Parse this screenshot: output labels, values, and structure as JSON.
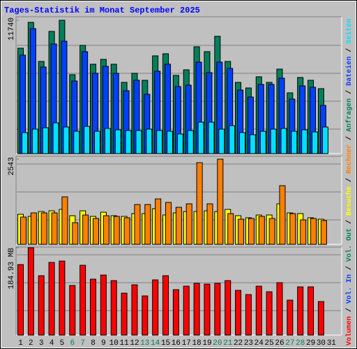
{
  "title": "Tages-Statistik im Monat September 2025",
  "legend_separator": " / ",
  "weekend_days": [
    5,
    6,
    12,
    13,
    19,
    20,
    26,
    27
  ],
  "weekend_color": "#00805c",
  "weekday_color": "#000000",
  "chart_data": [
    {
      "type": "bar",
      "ylim": [
        0,
        11740
      ],
      "yticks": [
        11740
      ],
      "series": [
        {
          "name": "Anfragen",
          "color": "#00805c",
          "values": [
            9280,
            11556,
            8114,
            10757,
            11740,
            6946,
            9528,
            7868,
            8298,
            7868,
            6270,
            7069,
            6454,
            8606,
            8790,
            6885,
            7376,
            9405,
            8975,
            10327,
            8114,
            6270,
            5778,
            6762,
            6270,
            7438,
            5348,
            6700,
            6454,
            5717,
            null
          ]
        },
        {
          "name": "Dateien",
          "color": "#0040ff",
          "values": [
            8667,
            11003,
            7622,
            9651,
            9897,
            6393,
            8975,
            7069,
            7684,
            7069,
            5532,
            6454,
            5225,
            7253,
            7868,
            5901,
            6024,
            8053,
            7131,
            8053,
            7499,
            5594,
            4979,
            6086,
            6086,
            6639,
            4795,
            5963,
            5840,
            4241,
            null
          ]
        },
        {
          "name": "Seiten",
          "color": "#00e0ff",
          "values": [
            1844,
            2151,
            2274,
            2705,
            2336,
            1967,
            2397,
            1967,
            2213,
            2090,
            2028,
            2028,
            2151,
            2028,
            1967,
            1721,
            2028,
            2766,
            2766,
            2151,
            2459,
            1844,
            1660,
            1967,
            2151,
            2213,
            1967,
            2090,
            1906,
            2336,
            null
          ]
        }
      ]
    },
    {
      "type": "bar",
      "ylim": [
        0,
        2543
      ],
      "yticks": [
        2543
      ],
      "series": [
        {
          "name": "Besuche",
          "color": "#ffff00",
          "values": [
            896,
            834,
            979,
            1000,
            1042,
            854,
            1000,
            834,
            959,
            854,
            834,
            917,
            917,
            1063,
            875,
            938,
            979,
            979,
            1000,
            979,
            1042,
            854,
            792,
            875,
            875,
            1209,
            938,
            917,
            792,
            750,
            null
          ]
        },
        {
          "name": "Rechner",
          "color": "#ff8000",
          "values": [
            813,
            938,
            938,
            938,
            1417,
            646,
            875,
            771,
            854,
            834,
            792,
            1188,
            1188,
            1355,
            1250,
            1105,
            1209,
            2438,
            1209,
            2543,
            917,
            750,
            771,
            834,
            771,
            1751,
            917,
            729,
            771,
            709,
            null
          ]
        }
      ]
    },
    {
      "type": "bar",
      "ylim": [
        0,
        184.93
      ],
      "yticks": [
        {
          "value": 184.93,
          "label": "184.93 MB"
        }
      ],
      "categories": [
        "1",
        "2",
        "3",
        "4",
        "5",
        "6",
        "7",
        "8",
        "9",
        "10",
        "11",
        "12",
        "13",
        "14",
        "15",
        "16",
        "17",
        "18",
        "19",
        "20",
        "21",
        "22",
        "23",
        "24",
        "25",
        "26",
        "27",
        "28",
        "29",
        "30",
        "31"
      ],
      "series": [
        {
          "name": "Volumen",
          "color": "#ff0000",
          "values": [
            149.4,
            184.93,
            125.8,
            153.9,
            156.8,
            105.0,
            147.9,
            118.4,
            127.2,
            115.4,
            88.8,
            106.5,
            82.9,
            116.9,
            125.8,
            96.2,
            103.6,
            109.5,
            108.0,
            109.5,
            115.4,
            94.7,
            85.8,
            103.6,
            91.7,
            111.0,
            74.0,
            102.1,
            102.1,
            71.0,
            null
          ]
        }
      ],
      "legend": [
        {
          "name": "Vol. In",
          "color": "#0040ff"
        },
        {
          "name": "Vol. Out",
          "color": "#00805c"
        }
      ]
    }
  ]
}
